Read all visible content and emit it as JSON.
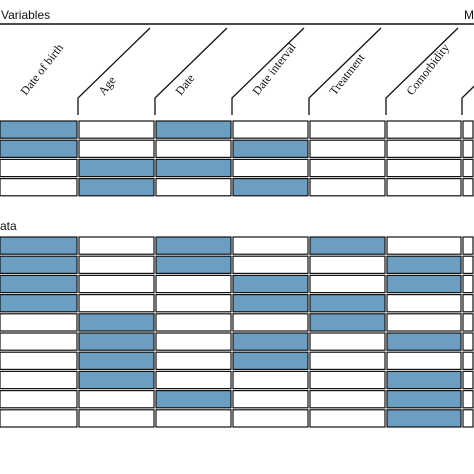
{
  "headings": {
    "variables": "Variables",
    "right_cut": "M",
    "data_partial": "ata"
  },
  "columns": [
    "Date of birth",
    "Age",
    "Date",
    "Date interval",
    "Treatment",
    "Comorbidity"
  ],
  "colors": {
    "filled": "#6b9ec0",
    "empty": "#ffffff",
    "line": "#111111"
  },
  "variables_rows": [
    [
      1,
      0,
      1,
      0,
      0,
      0,
      0
    ],
    [
      1,
      0,
      0,
      1,
      0,
      0,
      0
    ],
    [
      0,
      1,
      1,
      0,
      0,
      0,
      0
    ],
    [
      0,
      1,
      0,
      1,
      0,
      0,
      0
    ]
  ],
  "data_rows": [
    [
      1,
      0,
      1,
      0,
      1,
      0,
      0
    ],
    [
      1,
      0,
      1,
      0,
      0,
      1,
      0
    ],
    [
      1,
      0,
      0,
      1,
      0,
      1,
      0
    ],
    [
      1,
      0,
      0,
      1,
      1,
      0,
      0
    ],
    [
      0,
      1,
      0,
      0,
      1,
      0,
      0
    ],
    [
      0,
      1,
      0,
      1,
      0,
      1,
      0
    ],
    [
      0,
      1,
      0,
      1,
      0,
      0,
      0
    ],
    [
      0,
      1,
      0,
      0,
      0,
      1,
      0
    ],
    [
      0,
      0,
      1,
      0,
      0,
      1,
      0
    ],
    [
      0,
      0,
      0,
      0,
      0,
      1,
      0
    ]
  ]
}
